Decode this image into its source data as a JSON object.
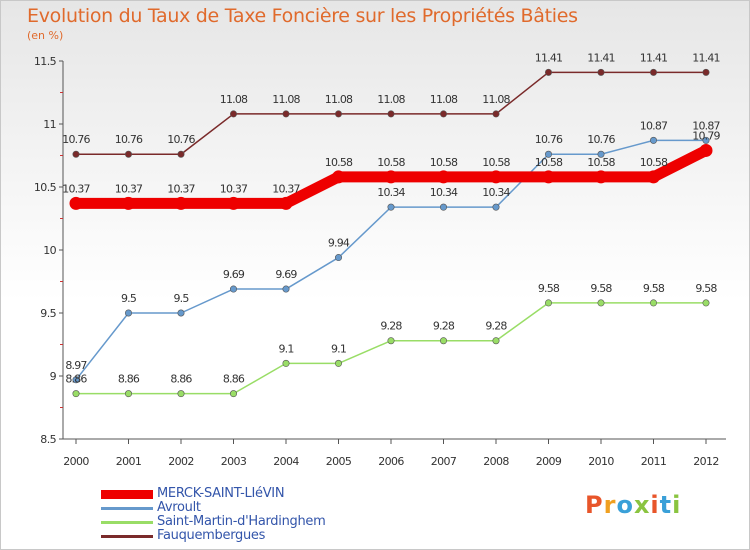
{
  "header": {
    "title": "Evolution du Taux de Taxe Foncière sur les Propriétés Bâties",
    "unit": "(en %)"
  },
  "brand": {
    "letters": [
      "P",
      "r",
      "o",
      "x",
      "i",
      "t",
      "i"
    ],
    "colors": [
      "#e8552a",
      "#f0a020",
      "#3aa0d8",
      "#8ac440",
      "#e8552a",
      "#3aa0d8",
      "#8ac440"
    ]
  },
  "chart_data": {
    "type": "line",
    "title": "Evolution du Taux de Taxe Foncière sur les Propriétés Bâties",
    "ylabel": "(en %)",
    "xlabel": "",
    "ylim": [
      8.5,
      11.5
    ],
    "yticks": [
      "8.5",
      "9",
      "9.5",
      "10",
      "10.5",
      "11",
      "11.5"
    ],
    "categories": [
      "2000",
      "2001",
      "2002",
      "2003",
      "2004",
      "2005",
      "2006",
      "2007",
      "2008",
      "2009",
      "2010",
      "2011",
      "2012"
    ],
    "series": [
      {
        "name": "MERCK-SAINT-LIéVIN",
        "color": "#ee0000",
        "emphasis": true,
        "values": [
          10.37,
          10.37,
          10.37,
          10.37,
          10.37,
          10.58,
          10.58,
          10.58,
          10.58,
          10.58,
          10.58,
          10.58,
          10.79
        ],
        "labels": [
          "10.37",
          "10.37",
          "10.37",
          "10.37",
          "10.37",
          "10.58",
          "10.58",
          "10.58",
          "10.58",
          "10.58",
          "10.58",
          "10.58",
          "10.79"
        ]
      },
      {
        "name": "Avroult",
        "color": "#6699cc",
        "emphasis": false,
        "values": [
          8.97,
          9.5,
          9.5,
          9.69,
          9.69,
          9.94,
          10.34,
          10.34,
          10.34,
          10.76,
          10.76,
          10.87,
          10.87
        ],
        "labels": [
          "8.97",
          "9.5",
          "9.5",
          "9.69",
          "9.69",
          "9.94",
          "10.34",
          "10.34",
          "10.34",
          "10.76",
          "10.76",
          "10.87",
          "10.87"
        ]
      },
      {
        "name": "Saint-Martin-d'Hardinghem",
        "color": "#99dd66",
        "emphasis": false,
        "values": [
          8.86,
          8.86,
          8.86,
          8.86,
          9.1,
          9.1,
          9.28,
          9.28,
          9.28,
          9.58,
          9.58,
          9.58,
          9.58
        ],
        "labels": [
          "8.86",
          "8.86",
          "8.86",
          "8.86",
          "9.1",
          "9.1",
          "9.28",
          "9.28",
          "9.28",
          "9.58",
          "9.58",
          "9.58",
          "9.58"
        ]
      },
      {
        "name": "Fauquembergues",
        "color": "#7a2a2a",
        "emphasis": false,
        "values": [
          10.76,
          10.76,
          10.76,
          11.08,
          11.08,
          11.08,
          11.08,
          11.08,
          11.08,
          11.41,
          11.41,
          11.41,
          11.41
        ],
        "labels": [
          "10.76",
          "10.76",
          "10.76",
          "11.08",
          "11.08",
          "11.08",
          "11.08",
          "11.08",
          "11.08",
          "11.41",
          "11.41",
          "11.41",
          "11.41"
        ]
      }
    ],
    "legend": "bottom-left"
  }
}
